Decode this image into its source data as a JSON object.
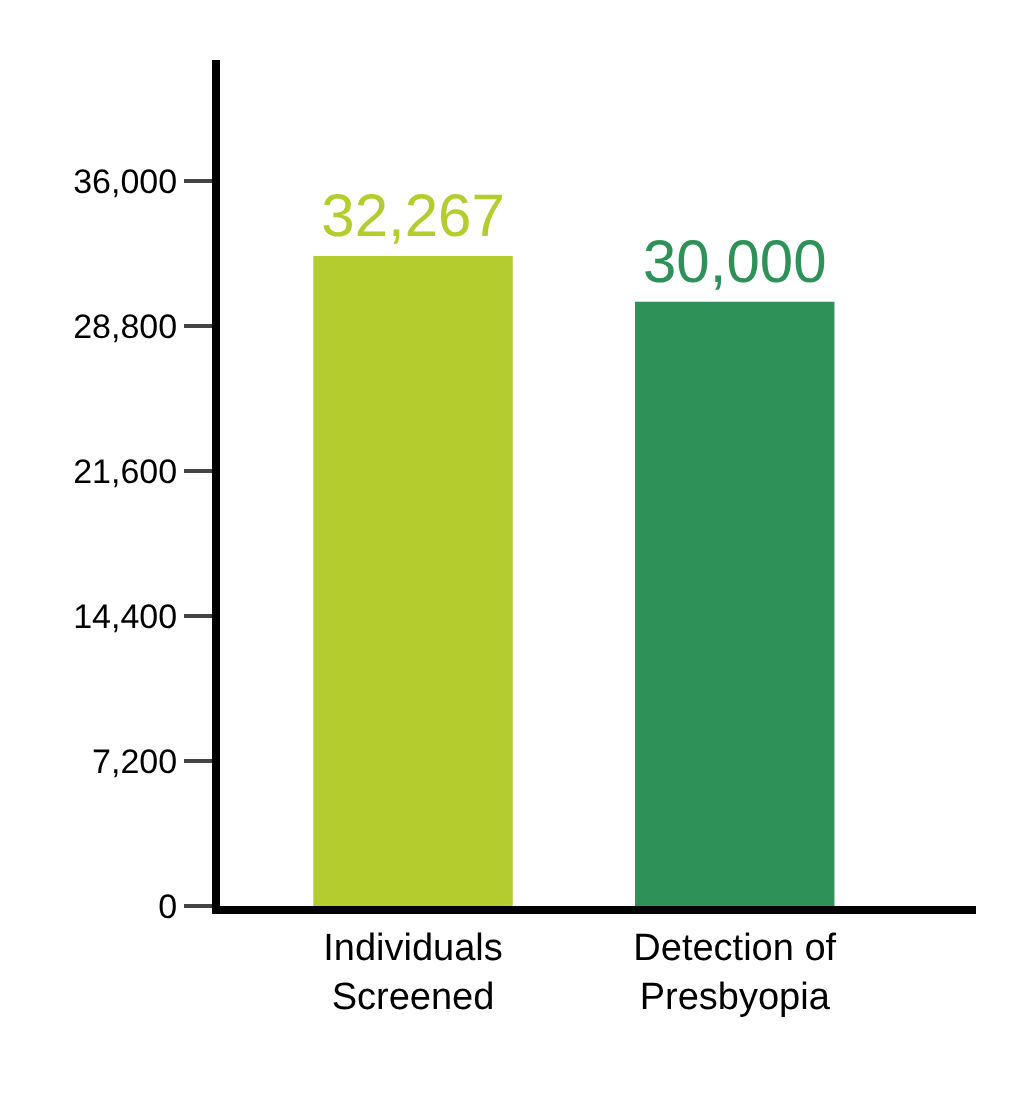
{
  "chart_data": {
    "type": "bar",
    "categories": [
      "Individuals Screened",
      "Detection of Presbyopia"
    ],
    "values": [
      32267,
      30000
    ],
    "colors": [
      "#b5cc2e",
      "#2e9158"
    ],
    "value_labels": [
      "32,267",
      "30,000"
    ],
    "ylim": [
      0,
      42000
    ],
    "yticks": [
      0,
      {
        "value": 7200,
        "label": "7,200"
      },
      {
        "value": 14400,
        "label": "14,400"
      },
      {
        "value": 21600,
        "label": "21,600"
      },
      {
        "value": 28800,
        "label": "28,800"
      },
      {
        "value": 36000,
        "label": "36,000"
      }
    ],
    "legend": false
  }
}
